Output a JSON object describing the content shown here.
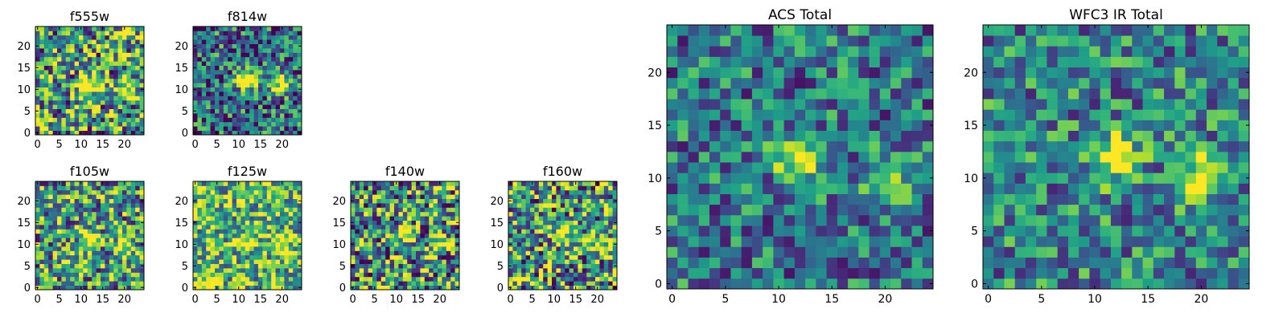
{
  "chart_data": [
    {
      "type": "heatmap",
      "title": "f555w",
      "xlim": [
        0,
        24
      ],
      "ylim": [
        0,
        24
      ],
      "xticks": [
        "0",
        "5",
        "10",
        "15",
        "20"
      ],
      "yticks": [
        "0",
        "5",
        "10",
        "15",
        "20"
      ],
      "colormap": "viridis",
      "sources": [
        [
          12,
          11,
          0.9
        ],
        [
          20,
          10,
          0.7
        ]
      ],
      "noise": 0.55,
      "base": 0.55
    },
    {
      "type": "heatmap",
      "title": "f814w",
      "xlim": [
        0,
        24
      ],
      "ylim": [
        0,
        24
      ],
      "xticks": [
        "0",
        "5",
        "10",
        "15",
        "20"
      ],
      "yticks": [
        "0",
        "5",
        "10",
        "15",
        "20"
      ],
      "colormap": "viridis",
      "sources": [
        [
          12,
          12,
          1.0
        ],
        [
          20,
          11,
          0.8
        ]
      ],
      "noise": 0.45,
      "base": 0.35
    },
    {
      "type": "heatmap",
      "title": "f105w",
      "xlim": [
        0,
        24
      ],
      "ylim": [
        0,
        24
      ],
      "xticks": [
        "0",
        "5",
        "10",
        "15",
        "20"
      ],
      "yticks": [
        "0",
        "5",
        "10",
        "15",
        "20"
      ],
      "colormap": "viridis",
      "sources": [
        [
          12,
          11,
          0.7
        ],
        [
          20,
          10,
          0.6
        ]
      ],
      "noise": 0.5,
      "base": 0.55
    },
    {
      "type": "heatmap",
      "title": "f125w",
      "xlim": [
        0,
        24
      ],
      "ylim": [
        0,
        24
      ],
      "xticks": [
        "0",
        "5",
        "10",
        "15",
        "20"
      ],
      "yticks": [
        "0",
        "5",
        "10",
        "15",
        "20"
      ],
      "colormap": "viridis",
      "sources": [
        [
          12,
          11,
          0.5
        ],
        [
          20,
          10,
          0.5
        ],
        [
          3,
          1,
          0.6
        ]
      ],
      "noise": 0.45,
      "base": 0.65
    },
    {
      "type": "heatmap",
      "title": "f140w",
      "xlim": [
        0,
        24
      ],
      "ylim": [
        0,
        24
      ],
      "xticks": [
        "0",
        "5",
        "10",
        "15",
        "20"
      ],
      "yticks": [
        "0",
        "5",
        "10",
        "15",
        "20"
      ],
      "colormap": "viridis",
      "sources": [
        [
          12,
          12,
          0.6
        ],
        [
          20,
          11,
          0.5
        ]
      ],
      "noise": 0.55,
      "base": 0.5
    },
    {
      "type": "heatmap",
      "title": "f160w",
      "xlim": [
        0,
        24
      ],
      "ylim": [
        0,
        24
      ],
      "xticks": [
        "0",
        "5",
        "10",
        "15",
        "20"
      ],
      "yticks": [
        "0",
        "5",
        "10",
        "15",
        "20"
      ],
      "colormap": "viridis",
      "sources": [
        [
          12,
          12,
          0.55
        ],
        [
          20,
          10,
          0.55
        ]
      ],
      "noise": 0.55,
      "base": 0.55
    },
    {
      "type": "heatmap",
      "title": "ACS Total",
      "xlim": [
        0,
        24
      ],
      "ylim": [
        0,
        24
      ],
      "xticks": [
        "0",
        "5",
        "10",
        "15",
        "20"
      ],
      "yticks": [
        "0",
        "5",
        "10",
        "15",
        "20"
      ],
      "colormap": "viridis",
      "sources": [
        [
          12,
          12,
          0.75
        ],
        [
          20,
          10,
          0.55
        ]
      ],
      "noise": 0.35,
      "base": 0.4
    },
    {
      "type": "heatmap",
      "title": "WFC3 IR Total",
      "xlim": [
        0,
        24
      ],
      "ylim": [
        0,
        24
      ],
      "xticks": [
        "0",
        "5",
        "10",
        "15",
        "20"
      ],
      "yticks": [
        "0",
        "5",
        "10",
        "15",
        "20"
      ],
      "colormap": "viridis",
      "sources": [
        [
          12,
          12,
          0.7
        ],
        [
          20,
          10,
          0.6
        ]
      ],
      "noise": 0.35,
      "base": 0.45
    }
  ]
}
